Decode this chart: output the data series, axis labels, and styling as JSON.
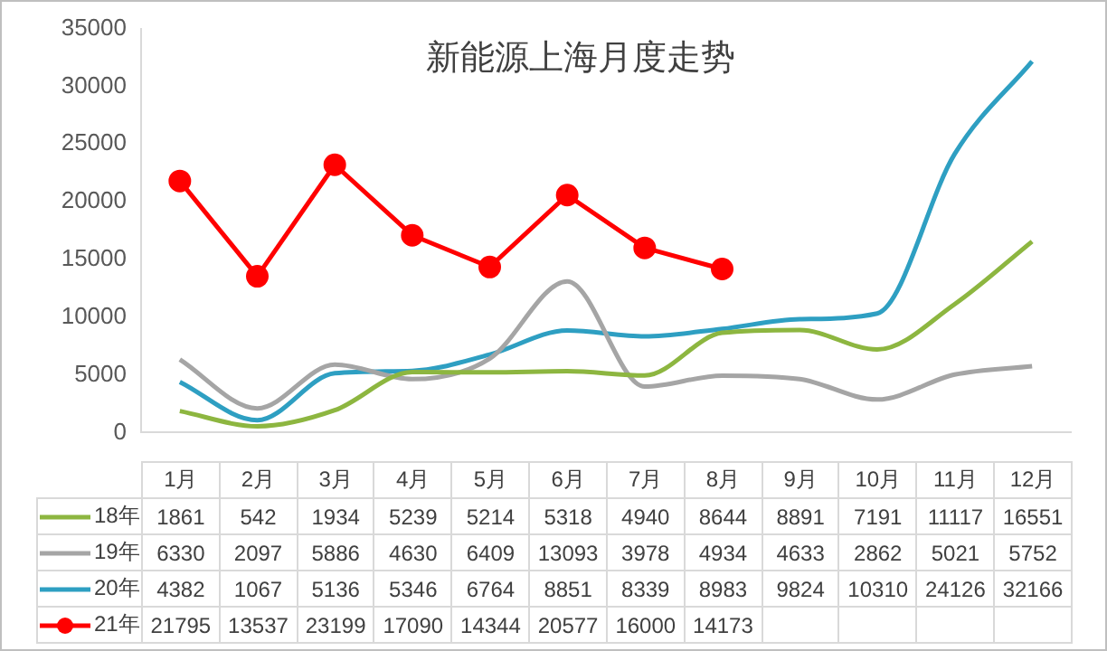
{
  "chart_data": {
    "type": "line",
    "title": "新能源上海月度走势",
    "categories": [
      "1月",
      "2月",
      "3月",
      "4月",
      "5月",
      "6月",
      "7月",
      "8月",
      "9月",
      "10月",
      "11月",
      "12月"
    ],
    "series": [
      {
        "name": "18年",
        "color": "#8db640",
        "marker": "none",
        "values": [
          1861,
          542,
          1934,
          5239,
          5214,
          5318,
          4940,
          8644,
          8891,
          7191,
          11117,
          16551
        ]
      },
      {
        "name": "19年",
        "color": "#a5a5a5",
        "marker": "none",
        "values": [
          6330,
          2097,
          5886,
          4630,
          6409,
          13093,
          3978,
          4934,
          4633,
          2862,
          5021,
          5752
        ]
      },
      {
        "name": "20年",
        "color": "#2e9fc2",
        "marker": "none",
        "values": [
          4382,
          1067,
          5136,
          5346,
          6764,
          8851,
          8339,
          8983,
          9824,
          10310,
          24126,
          32166
        ]
      },
      {
        "name": "21年",
        "color": "#ff0000",
        "marker": "circle",
        "values": [
          21795,
          13537,
          23199,
          17090,
          14344,
          20577,
          16000,
          14173,
          null,
          null,
          null,
          null
        ]
      }
    ],
    "ylim": [
      0,
      35000
    ],
    "yticks": [
      0,
      5000,
      10000,
      15000,
      20000,
      25000,
      30000,
      35000
    ],
    "grid": false,
    "legend": "bottom",
    "data_labels": true
  }
}
